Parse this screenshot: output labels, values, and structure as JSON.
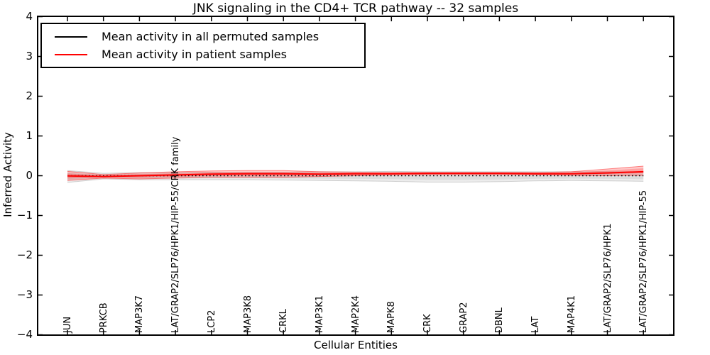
{
  "figure": {
    "title": "JNK signaling in the CD4+ TCR pathway -- 32 samples",
    "xlabel": "Cellular Entities",
    "ylabel": "Inferred Activity"
  },
  "legend": {
    "items": [
      {
        "label": "Mean activity in all permuted samples",
        "color": "#000000"
      },
      {
        "label": "Mean activity in patient samples",
        "color": "#ff0000"
      }
    ]
  },
  "y_axis": {
    "ticks": [
      {
        "label": "4",
        "value": 4
      },
      {
        "label": "3",
        "value": 3
      },
      {
        "label": "2",
        "value": 2
      },
      {
        "label": "1",
        "value": 1
      },
      {
        "label": "0",
        "value": 0
      },
      {
        "label": "−1",
        "value": -1
      },
      {
        "label": "−2",
        "value": -2
      },
      {
        "label": "−3",
        "value": -3
      },
      {
        "label": "−4",
        "value": -4
      }
    ]
  },
  "chart_data": {
    "type": "line",
    "title": "JNK signaling in the CD4+ TCR pathway -- 32 samples",
    "xlabel": "Cellular Entities",
    "ylabel": "Inferred Activity",
    "ylim": [
      -4,
      4
    ],
    "grid": false,
    "legend_position": "upper left",
    "categories": [
      "JUN",
      "PRKCB",
      "MAP3K7",
      "LAT/GRAP2/SLP76/HPK1/HIP-55/CRK family",
      "LCP2",
      "MAP3K8",
      "CRKL",
      "MAP3K1",
      "MAP2K4",
      "MAPK8",
      "CRK",
      "GRAP2",
      "DBNL",
      "LAT",
      "MAP4K1",
      "LAT/GRAP2/SLP76/HPK1",
      "LAT/GRAP2/SLP76/HPK1/HIP-55"
    ],
    "series": [
      {
        "name": "Mean activity in all permuted samples",
        "color": "#000000",
        "style": "dotted",
        "values": [
          0,
          0,
          0,
          0,
          0,
          0,
          0,
          0,
          0,
          0,
          0,
          0,
          0,
          0,
          0,
          0,
          0
        ]
      },
      {
        "name": "Mean activity in patient samples",
        "color": "#ff0000",
        "style": "solid",
        "values": [
          -0.005,
          -0.02,
          0.0,
          0.02,
          0.04,
          0.05,
          0.05,
          0.04,
          0.05,
          0.05,
          0.06,
          0.06,
          0.06,
          0.05,
          0.05,
          0.07,
          0.1
        ]
      }
    ],
    "bands": [
      {
        "name": "permuted-std-band",
        "color": "#888888",
        "fill_alpha": 0.16,
        "edge_alpha": 0.35,
        "upper": [
          0.13,
          0.06,
          0.08,
          0.08,
          0.09,
          0.09,
          0.09,
          0.1,
          0.1,
          0.11,
          0.1,
          0.1,
          0.1,
          0.1,
          0.1,
          0.1,
          0.1
        ],
        "lower": [
          -0.17,
          -0.08,
          -0.1,
          -0.1,
          -0.1,
          -0.1,
          -0.11,
          -0.12,
          -0.13,
          -0.14,
          -0.16,
          -0.16,
          -0.15,
          -0.13,
          -0.12,
          -0.13,
          -0.14
        ]
      },
      {
        "name": "patient-std-band",
        "color": "#ff0000",
        "fill_alpha": 0.2,
        "edge_alpha": 0.45,
        "upper": [
          0.11,
          0.03,
          0.07,
          0.1,
          0.12,
          0.13,
          0.13,
          0.1,
          0.09,
          0.08,
          0.08,
          0.08,
          0.08,
          0.08,
          0.1,
          0.17,
          0.24
        ],
        "lower": [
          -0.12,
          -0.06,
          -0.08,
          -0.06,
          -0.04,
          -0.04,
          -0.04,
          -0.02,
          0.0,
          0.02,
          0.03,
          0.03,
          0.03,
          0.03,
          0.01,
          0.0,
          0.01
        ]
      }
    ]
  }
}
